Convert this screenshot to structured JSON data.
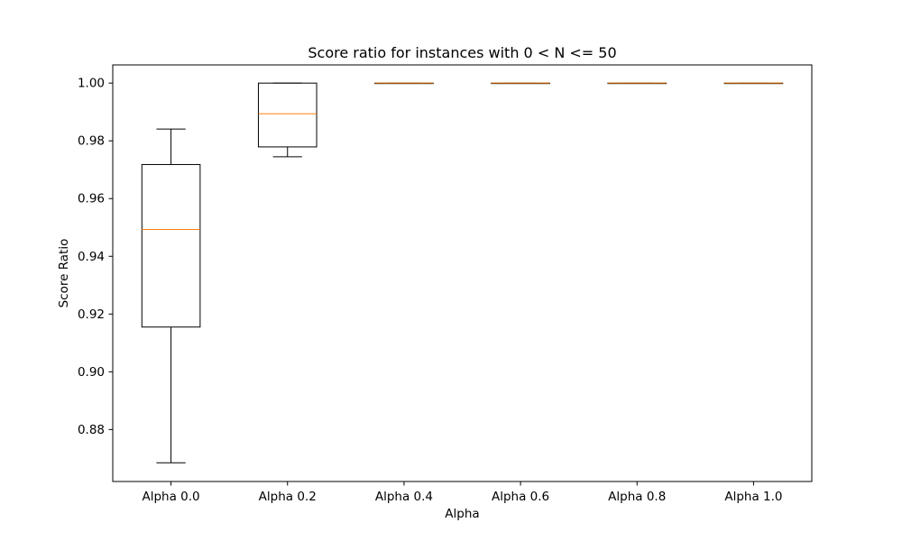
{
  "chart_data": {
    "type": "box",
    "title": "Score ratio for instances with 0 < N <= 50",
    "xlabel": "Alpha",
    "ylabel": "Score Ratio",
    "categories": [
      "Alpha 0.0",
      "Alpha 0.2",
      "Alpha 0.4",
      "Alpha 0.6",
      "Alpha 0.8",
      "Alpha 1.0"
    ],
    "boxes": [
      {
        "whislo": 0.8685,
        "q1": 0.9155,
        "med": 0.9493,
        "q3": 0.9718,
        "whishi": 0.9841
      },
      {
        "whislo": 0.9745,
        "q1": 0.9779,
        "med": 0.9894,
        "q3": 1.0,
        "whishi": 1.0
      },
      {
        "whislo": 1.0,
        "q1": 1.0,
        "med": 1.0,
        "q3": 1.0,
        "whishi": 1.0
      },
      {
        "whislo": 1.0,
        "q1": 1.0,
        "med": 1.0,
        "q3": 1.0,
        "whishi": 1.0
      },
      {
        "whislo": 1.0,
        "q1": 1.0,
        "med": 1.0,
        "q3": 1.0,
        "whishi": 1.0
      },
      {
        "whislo": 1.0,
        "q1": 1.0,
        "med": 1.0,
        "q3": 1.0,
        "whishi": 1.0
      }
    ],
    "ylim": [
      0.862,
      1.0063
    ],
    "yticks": [
      0.88,
      0.9,
      0.92,
      0.94,
      0.96,
      0.98,
      1.0
    ],
    "ytick_labels": [
      "0.88",
      "0.90",
      "0.92",
      "0.94",
      "0.96",
      "0.98",
      "1.00"
    ],
    "grid": false,
    "colors": {
      "box": "#000000",
      "median": "#ff7f0e",
      "axes": "#000000",
      "background": "#ffffff"
    }
  }
}
